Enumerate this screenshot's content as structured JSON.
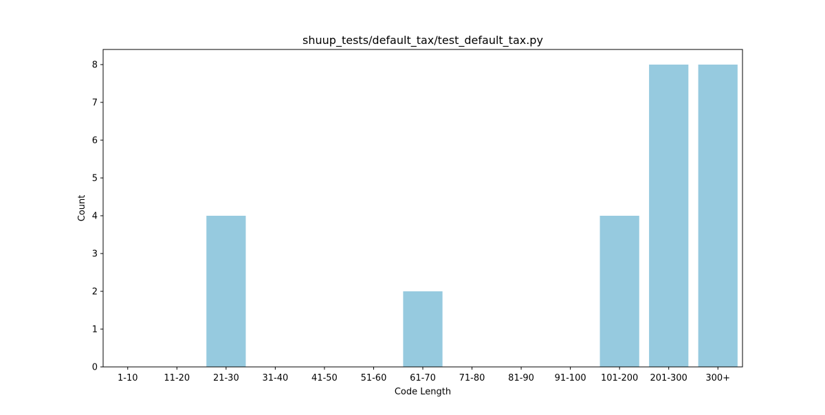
{
  "chart_data": {
    "type": "bar",
    "title": "shuup_tests/default_tax/test_default_tax.py",
    "xlabel": "Code Length",
    "ylabel": "Count",
    "categories": [
      "1-10",
      "11-20",
      "21-30",
      "31-40",
      "41-50",
      "51-60",
      "61-70",
      "71-80",
      "81-90",
      "91-100",
      "101-200",
      "201-300",
      "300+"
    ],
    "values": [
      0,
      0,
      4,
      0,
      0,
      0,
      2,
      0,
      0,
      0,
      4,
      8,
      8
    ],
    "ylim": [
      0,
      8.4
    ],
    "yticks": [
      0,
      1,
      2,
      3,
      4,
      5,
      6,
      7,
      8
    ],
    "bar_color": "#96cadf",
    "grid": false,
    "legend": "none"
  }
}
